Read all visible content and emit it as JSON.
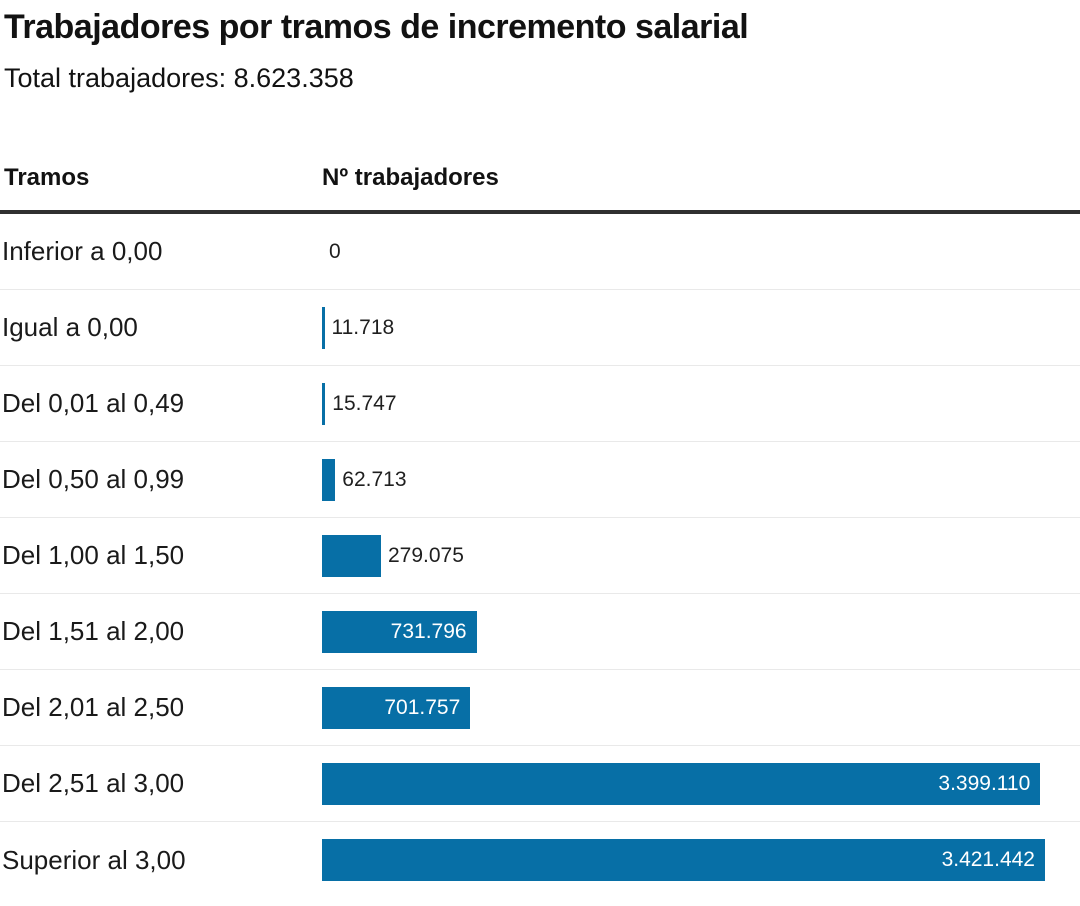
{
  "header": {
    "title": "Trabajadores por tramos de incremento salarial",
    "subtitle": "Total trabajadores: 8.623.358",
    "total_workers": "8.623.358"
  },
  "table": {
    "col1": "Tramos",
    "col2": "Nº trabajadores"
  },
  "chart_data": {
    "type": "bar",
    "orientation": "horizontal",
    "title": "Trabajadores por tramos de incremento salarial",
    "subtitle": "Total trabajadores: 8.623.358",
    "xlabel": "Nº trabajadores",
    "ylabel": "Tramos",
    "categories": [
      "Inferior a 0,00",
      "Igual a 0,00",
      "Del 0,01 al 0,49",
      "Del 0,50 al 0,99",
      "Del 1,00 al 1,50",
      "Del 1,51 al 2,00",
      "Del 2,01 al 2,50",
      "Del 2,51 al 3,00",
      "Superior al 3,00"
    ],
    "values": [
      0,
      11718,
      15747,
      62713,
      279075,
      731796,
      701757,
      3399110,
      3421442
    ],
    "value_labels": [
      "0",
      "11.718",
      "15.747",
      "62.713",
      "279.075",
      "731.796",
      "701.757",
      "3.399.110",
      "3.421.442"
    ],
    "label_placement": [
      "outside",
      "outside",
      "outside",
      "outside",
      "outside",
      "inside",
      "inside",
      "inside",
      "inside"
    ],
    "max_value": 3421442,
    "xlim": [
      0,
      3421442
    ],
    "grid": false,
    "legend": false,
    "colors": {
      "bar": "#076fa6",
      "header_rule": "#303030",
      "row_separator": "#e9e9e9",
      "text": "#1a1a1a",
      "value_inside_text": "#ffffff"
    }
  }
}
